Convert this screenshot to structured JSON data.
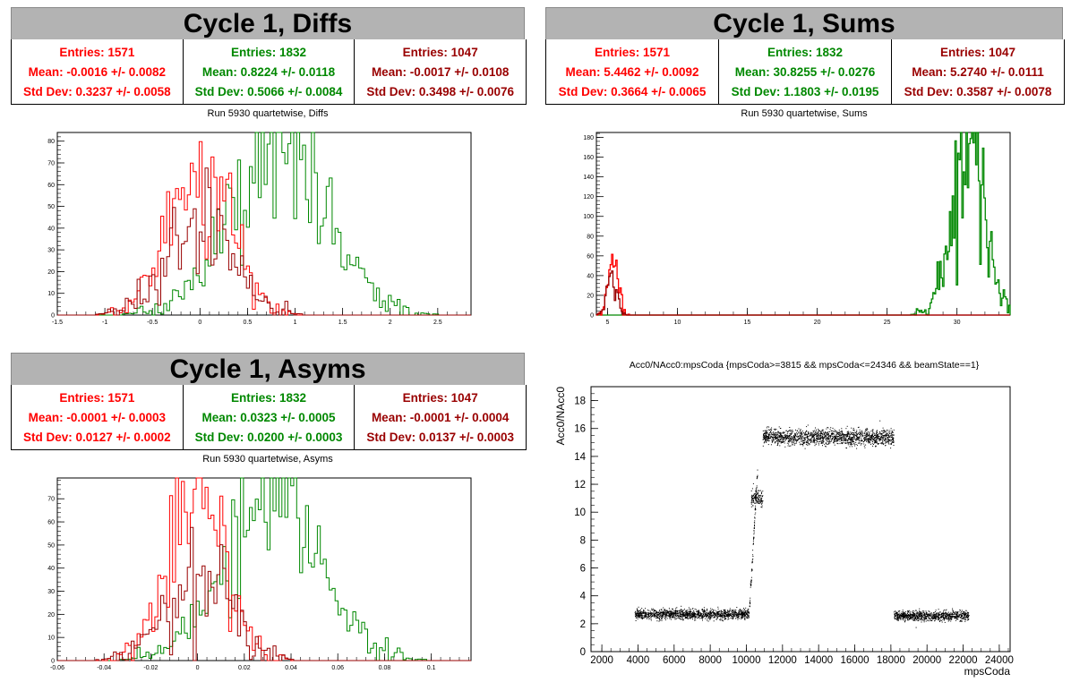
{
  "colors": {
    "red": "#ff0000",
    "green": "#008800",
    "darkred": "#990000"
  },
  "panels": [
    {
      "id": "diffs",
      "banner": "Cycle 1, Diffs",
      "stats": [
        {
          "color": "#ff0000",
          "entries": "Entries: 1571",
          "mean": "Mean: -0.0016 +/- 0.0082",
          "std": "Std Dev: 0.3237 +/- 0.0058"
        },
        {
          "color": "#008800",
          "entries": "Entries: 1832",
          "mean": "Mean: 0.8224 +/- 0.0118",
          "std": "Std Dev: 0.5066 +/- 0.0084"
        },
        {
          "color": "#990000",
          "entries": "Entries: 1047",
          "mean": "Mean: -0.0017 +/- 0.0108",
          "std": "Std Dev: 0.3498 +/- 0.0076"
        }
      ],
      "subtitle": "Run 5930 quartetwise, Diffs"
    },
    {
      "id": "sums",
      "banner": "Cycle 1, Sums",
      "stats": [
        {
          "color": "#ff0000",
          "entries": "Entries: 1571",
          "mean": "Mean: 5.4462 +/- 0.0092",
          "std": "Std Dev: 0.3664 +/- 0.0065"
        },
        {
          "color": "#008800",
          "entries": "Entries: 1832",
          "mean": "Mean: 30.8255 +/- 0.0276",
          "std": "Std Dev: 1.1803 +/- 0.0195"
        },
        {
          "color": "#990000",
          "entries": "Entries: 1047",
          "mean": "Mean: 5.2740 +/- 0.0111",
          "std": "Std Dev: 0.3587 +/- 0.0078"
        }
      ],
      "subtitle": "Run 5930 quartetwise, Sums"
    },
    {
      "id": "asyms",
      "banner": "Cycle 1, Asyms",
      "stats": [
        {
          "color": "#ff0000",
          "entries": "Entries: 1571",
          "mean": "Mean: -0.0001 +/- 0.0003",
          "std": "Std Dev: 0.0127 +/- 0.0002"
        },
        {
          "color": "#008800",
          "entries": "Entries: 1832",
          "mean": "Mean: 0.0323 +/- 0.0005",
          "std": "Std Dev: 0.0200 +/- 0.0003"
        },
        {
          "color": "#990000",
          "entries": "Entries: 1047",
          "mean": "Mean: -0.0001 +/- 0.0004",
          "std": "Std Dev: 0.0137 +/- 0.0003"
        }
      ],
      "subtitle": "Run 5930 quartetwise, Asyms"
    },
    {
      "id": "scatter",
      "title": "Acc0/NAcc0:mpsCoda {mpsCoda>=3815 && mpsCoda<=24346 && beamState==1}"
    }
  ],
  "chart_data": [
    {
      "type": "histogram",
      "title": "Run 5930 quartetwise, Diffs",
      "xlim": [
        -1.5,
        2.85
      ],
      "ylim": [
        0,
        84
      ],
      "xticks": [
        "-1.5",
        "-1",
        "-0.5",
        "0",
        "0.5",
        "1",
        "1.5",
        "2",
        "2.5"
      ],
      "yticks": [
        "0",
        "10",
        "20",
        "30",
        "40",
        "50",
        "60",
        "70",
        "80"
      ],
      "series": [
        {
          "color": "#ff0000",
          "entries": 1571,
          "mean": -0.0016,
          "std": 0.3237,
          "peak": 72
        },
        {
          "color": "#008800",
          "entries": 1832,
          "mean": 0.8224,
          "std": 0.5066,
          "peak": 75
        },
        {
          "color": "#990000",
          "entries": 1047,
          "mean": -0.0017,
          "std": 0.3498,
          "peak": 45
        }
      ]
    },
    {
      "type": "histogram",
      "title": "Run 5930 quartetwise, Sums",
      "xlim": [
        4.2,
        33.8
      ],
      "ylim": [
        0,
        185
      ],
      "xticks": [
        "5",
        "10",
        "15",
        "20",
        "25",
        "30"
      ],
      "yticks": [
        "0",
        "20",
        "40",
        "60",
        "80",
        "100",
        "120",
        "140",
        "160",
        "180"
      ],
      "series": [
        {
          "color": "#ff0000",
          "entries": 1571,
          "mean": 5.4462,
          "std": 0.3664,
          "peak": 55
        },
        {
          "color": "#008800",
          "entries": 1832,
          "mean": 30.8255,
          "std": 1.1803,
          "peak": 180
        },
        {
          "color": "#990000",
          "entries": 1047,
          "mean": 5.274,
          "std": 0.3587,
          "peak": 40
        }
      ]
    },
    {
      "type": "histogram",
      "title": "Run 5930 quartetwise, Asyms",
      "xlim": [
        -0.06,
        0.117
      ],
      "ylim": [
        0,
        79
      ],
      "xticks": [
        "-0.06",
        "-0.04",
        "-0.02",
        "0",
        "0.02",
        "0.04",
        "0.06",
        "0.08",
        "0.1"
      ],
      "yticks": [
        "0",
        "10",
        "20",
        "30",
        "40",
        "50",
        "60",
        "70"
      ],
      "series": [
        {
          "color": "#ff0000",
          "entries": 1571,
          "mean": -0.0001,
          "std": 0.0127,
          "peak": 68
        },
        {
          "color": "#008800",
          "entries": 1832,
          "mean": 0.0323,
          "std": 0.02,
          "peak": 75
        },
        {
          "color": "#990000",
          "entries": 1047,
          "mean": -0.0001,
          "std": 0.0137,
          "peak": 40
        }
      ]
    },
    {
      "type": "scatter",
      "title": "Acc0/NAcc0:mpsCoda {mpsCoda>=3815 && mpsCoda<=24346 && beamState==1}",
      "xlabel": "mpsCoda",
      "ylabel": "Acc0/NAcc0",
      "xlim": [
        1400,
        24600
      ],
      "ylim": [
        0,
        19
      ],
      "xticks": [
        "2000",
        "4000",
        "6000",
        "8000",
        "10000",
        "12000",
        "14000",
        "16000",
        "18000",
        "20000",
        "22000",
        "24000"
      ],
      "yticks": [
        "0",
        "2",
        "4",
        "6",
        "8",
        "10",
        "12",
        "14",
        "16",
        "18"
      ],
      "segments": [
        {
          "x0": 3815,
          "x1": 10150,
          "y": 2.7,
          "spread": 0.35
        },
        {
          "x0": 10150,
          "x1": 10600,
          "y0": 3.0,
          "y1": 13.0,
          "spread": 0.4
        },
        {
          "x0": 10250,
          "x1": 10900,
          "y": 11.0,
          "spread": 0.6
        },
        {
          "x0": 10900,
          "x1": 18150,
          "y": 15.4,
          "spread": 0.55
        },
        {
          "x0": 18150,
          "x1": 22300,
          "y": 2.6,
          "spread": 0.35
        }
      ]
    }
  ]
}
